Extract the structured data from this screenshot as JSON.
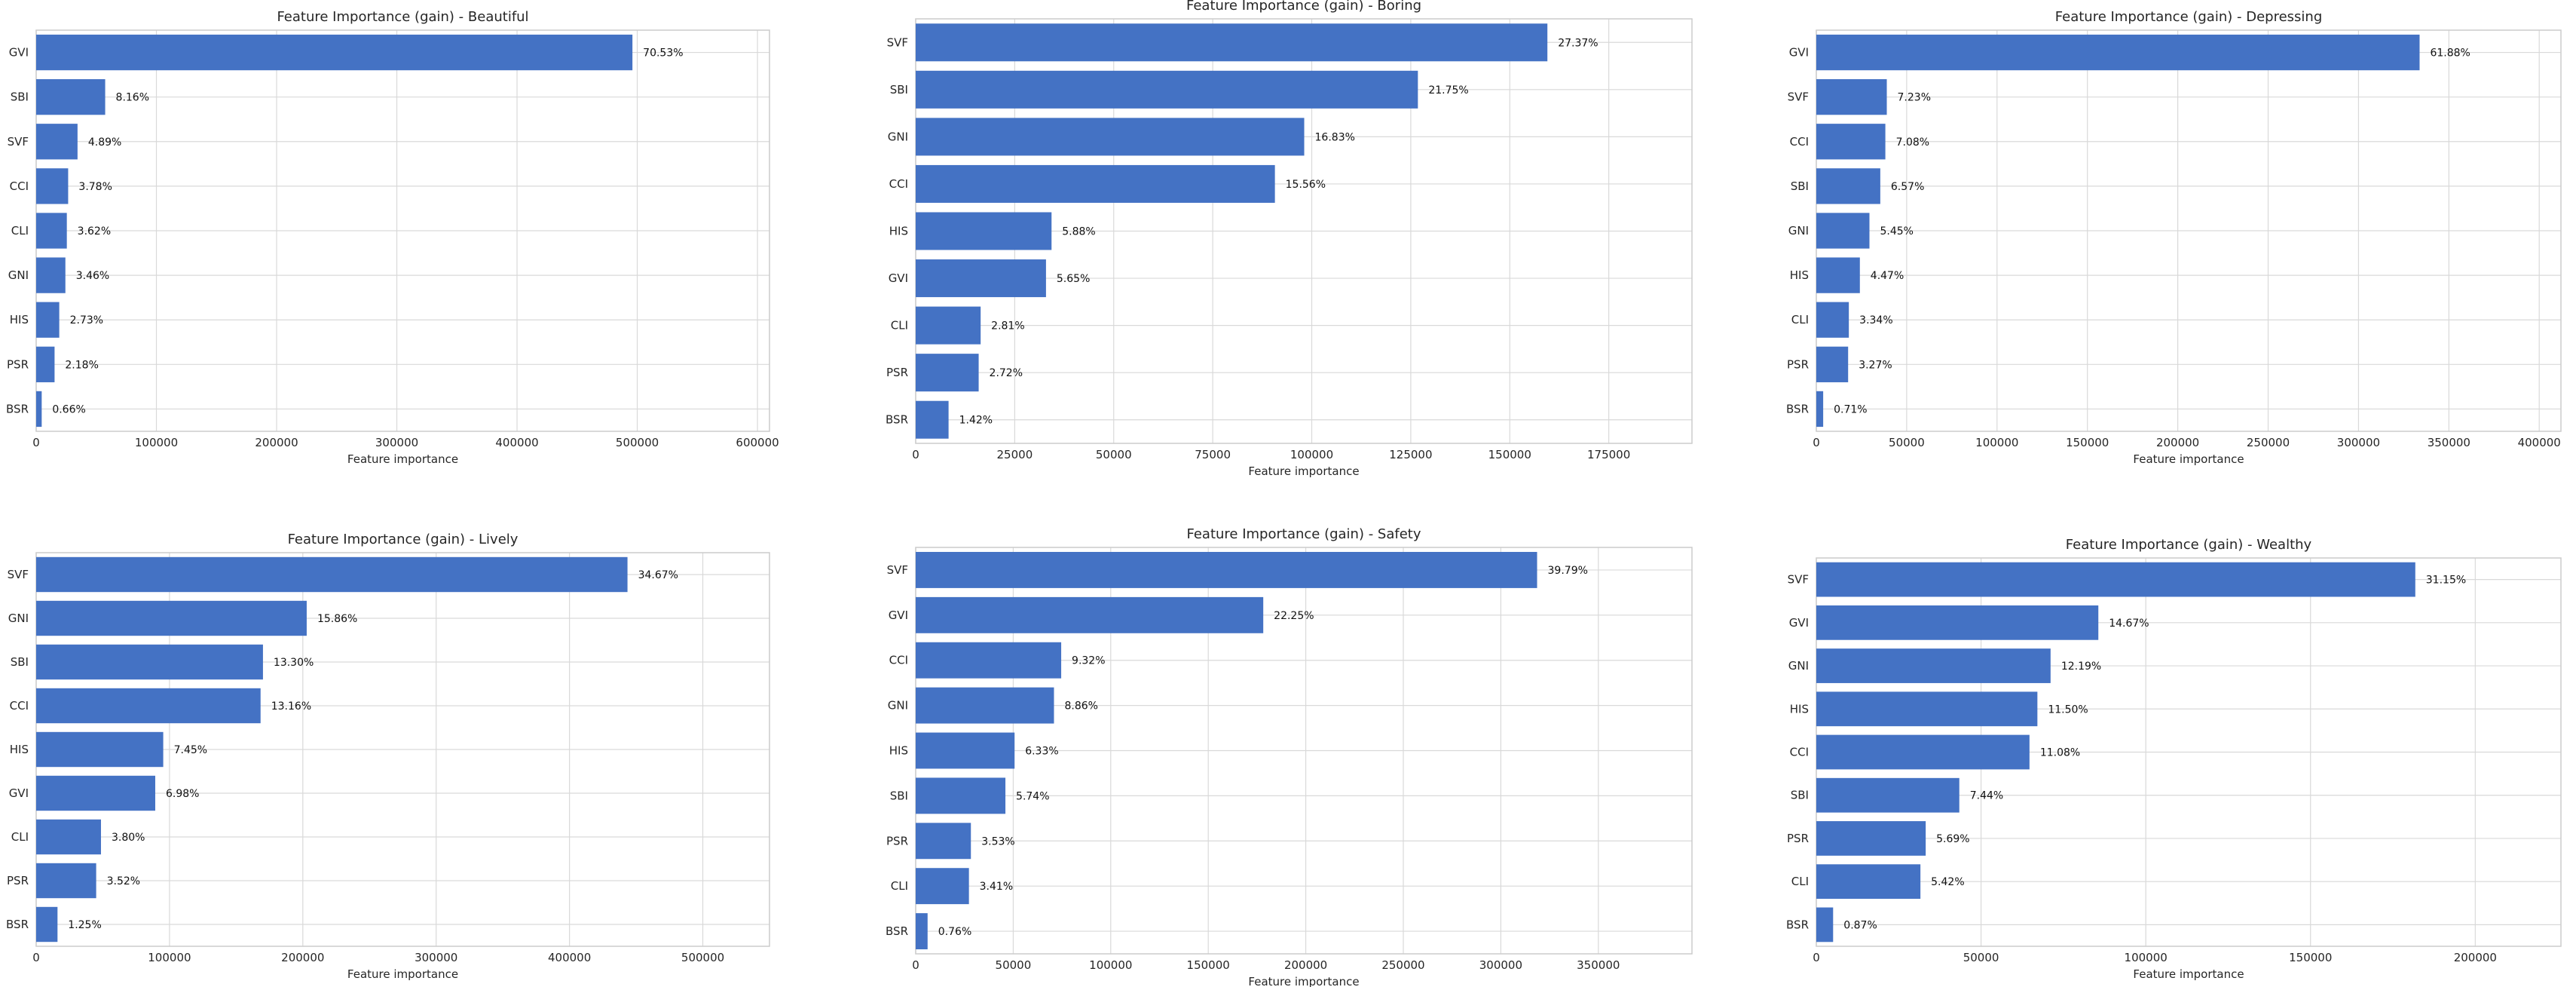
{
  "chart_data": [
    {
      "type": "bar",
      "orientation": "horizontal",
      "title": "Feature Importance (gain) - Beautiful",
      "xlabel": "Feature importance",
      "ylabel": "",
      "xlim": [
        0,
        610000
      ],
      "xticks": [
        0,
        100000,
        200000,
        300000,
        400000,
        500000,
        600000
      ],
      "grid": true,
      "bar_color": "#4472c4",
      "categories": [
        "GVI",
        "SBI",
        "SVF",
        "CCI",
        "CLI",
        "GNI",
        "HIS",
        "PSR",
        "BSR"
      ],
      "values": [
        496000,
        57400,
        34400,
        26600,
        25500,
        24300,
        19200,
        15300,
        4600
      ],
      "labels": [
        "70.53%",
        "8.16%",
        "4.89%",
        "3.78%",
        "3.62%",
        "3.46%",
        "2.73%",
        "2.18%",
        "0.66%"
      ]
    },
    {
      "type": "bar",
      "orientation": "horizontal",
      "title": "Feature Importance (gain) - Boring",
      "xlabel": "Feature importance",
      "ylabel": "",
      "xlim": [
        0,
        196000
      ],
      "xticks": [
        0,
        25000,
        50000,
        75000,
        100000,
        125000,
        150000,
        175000
      ],
      "grid": true,
      "bar_color": "#4472c4",
      "categories": [
        "SVF",
        "SBI",
        "GNI",
        "CCI",
        "HIS",
        "GVI",
        "CLI",
        "PSR",
        "BSR"
      ],
      "values": [
        159500,
        126800,
        98100,
        90700,
        34300,
        32900,
        16400,
        15900,
        8300
      ],
      "labels": [
        "27.37%",
        "21.75%",
        "16.83%",
        "15.56%",
        "5.88%",
        "5.65%",
        "2.81%",
        "2.72%",
        "1.42%"
      ]
    },
    {
      "type": "bar",
      "orientation": "horizontal",
      "title": "Feature Importance (gain) - Depressing",
      "xlabel": "Feature importance",
      "ylabel": "",
      "xlim": [
        0,
        412000
      ],
      "xticks": [
        0,
        50000,
        100000,
        150000,
        200000,
        250000,
        300000,
        350000,
        400000
      ],
      "grid": true,
      "bar_color": "#4472c4",
      "categories": [
        "GVI",
        "SVF",
        "CCI",
        "SBI",
        "GNI",
        "HIS",
        "CLI",
        "PSR",
        "BSR"
      ],
      "values": [
        333800,
        39000,
        38200,
        35400,
        29400,
        24100,
        18000,
        17600,
        3800
      ],
      "labels": [
        "61.88%",
        "7.23%",
        "7.08%",
        "6.57%",
        "5.45%",
        "4.47%",
        "3.34%",
        "3.27%",
        "0.71%"
      ]
    },
    {
      "type": "bar",
      "orientation": "horizontal",
      "title": "Feature Importance (gain) - Lively",
      "xlabel": "Feature importance",
      "ylabel": "",
      "xlim": [
        0,
        550000
      ],
      "xticks": [
        0,
        100000,
        200000,
        300000,
        400000,
        500000
      ],
      "grid": true,
      "bar_color": "#4472c4",
      "categories": [
        "SVF",
        "GNI",
        "SBI",
        "CCI",
        "HIS",
        "GVI",
        "CLI",
        "PSR",
        "BSR"
      ],
      "values": [
        443500,
        202900,
        170100,
        168300,
        95300,
        89300,
        48600,
        45000,
        16000
      ],
      "labels": [
        "34.67%",
        "15.86%",
        "13.30%",
        "13.16%",
        "7.45%",
        "6.98%",
        "3.80%",
        "3.52%",
        "1.25%"
      ]
    },
    {
      "type": "bar",
      "orientation": "horizontal",
      "title": "Feature Importance (gain) - Safety",
      "xlabel": "Feature importance",
      "ylabel": "",
      "xlim": [
        0,
        398000
      ],
      "xticks": [
        0,
        50000,
        100000,
        150000,
        200000,
        250000,
        300000,
        350000
      ],
      "grid": true,
      "bar_color": "#4472c4",
      "categories": [
        "SVF",
        "GVI",
        "CCI",
        "GNI",
        "HIS",
        "SBI",
        "PSR",
        "CLI",
        "BSR"
      ],
      "values": [
        318600,
        178200,
        74600,
        70900,
        50700,
        46000,
        28300,
        27300,
        6100
      ],
      "labels": [
        "39.79%",
        "22.25%",
        "9.32%",
        "8.86%",
        "6.33%",
        "5.74%",
        "3.53%",
        "3.41%",
        "0.76%"
      ]
    },
    {
      "type": "bar",
      "orientation": "horizontal",
      "title": "Feature Importance (gain) - Wealthy",
      "xlabel": "Feature importance",
      "ylabel": "",
      "xlim": [
        0,
        226000
      ],
      "xticks": [
        0,
        50000,
        100000,
        150000,
        200000
      ],
      "grid": true,
      "bar_color": "#4472c4",
      "categories": [
        "SVF",
        "GVI",
        "GNI",
        "HIS",
        "CCI",
        "SBI",
        "PSR",
        "CLI",
        "BSR"
      ],
      "values": [
        181800,
        85600,
        71100,
        67100,
        64700,
        43400,
        33200,
        31600,
        5100
      ],
      "labels": [
        "31.15%",
        "14.67%",
        "12.19%",
        "11.50%",
        "11.08%",
        "7.44%",
        "5.69%",
        "5.42%",
        "0.87%"
      ]
    }
  ]
}
